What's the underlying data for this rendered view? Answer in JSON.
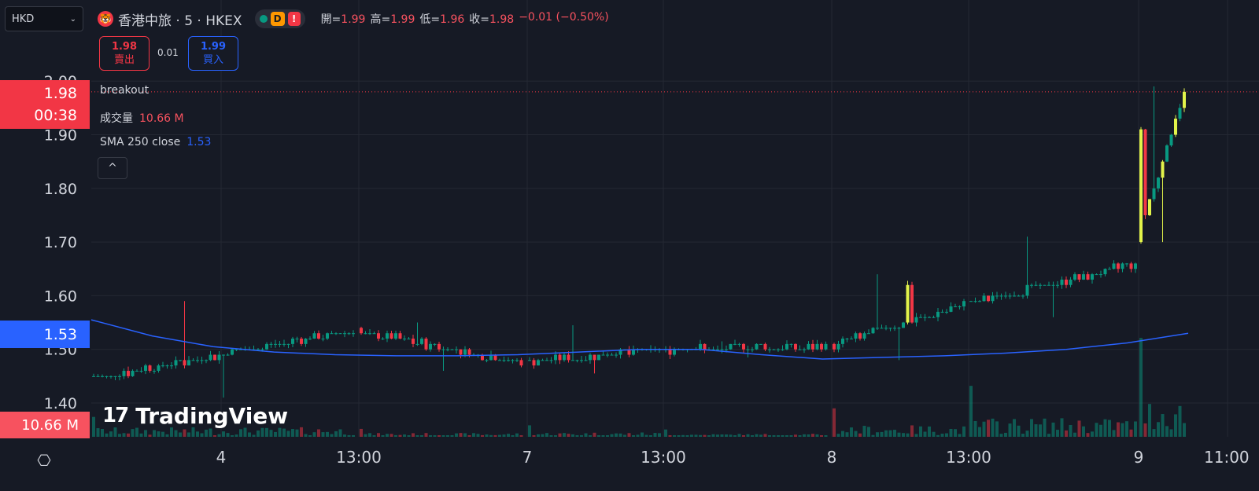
{
  "header": {
    "currency": "HKD",
    "logo_glyph": "🐯",
    "symbol_title": "香港中旅 · 5 · HKEX",
    "status_d": "D",
    "status_excl": "!",
    "ohlc": {
      "open_label": "開=",
      "open": "1.99",
      "high_label": "高=",
      "high": "1.99",
      "low_label": "低=",
      "low": "1.96",
      "close_label": "收=",
      "close": "1.98",
      "change": "−0.01 (−0.50%)"
    }
  },
  "trade": {
    "sell_price": "1.98",
    "sell_label": "賣出",
    "spread": "0.01",
    "buy_price": "1.99",
    "buy_label": "買入"
  },
  "indicators": {
    "breakout": "breakout",
    "volume_label": "成交量",
    "volume_value": "10.66 M",
    "sma_label": "SMA 250 close",
    "sma_value": "1.53"
  },
  "collapse_glyph": "^",
  "price_tags": {
    "last_price": "1.98",
    "countdown": "00:38",
    "sma": "1.53",
    "volume": "10.66 M"
  },
  "branding": {
    "mark": "17",
    "name": "TradingView"
  },
  "settings_glyph": "⎔",
  "colors": {
    "background": "#161a25",
    "up": "#089981",
    "down": "#f23645",
    "highlight": "#e2f34a",
    "sma": "#2962ff",
    "grid": "#242833"
  },
  "chart_data": {
    "type": "candlestick",
    "y_ticks": [
      1.4,
      1.5,
      1.6,
      1.7,
      1.8,
      1.9,
      2.0
    ],
    "ylim": [
      1.39,
      2.01
    ],
    "x_ticks": [
      "4",
      "13:00",
      "7",
      "13:00",
      "8",
      "13:00",
      "9",
      "11:00"
    ],
    "last_price": 1.98,
    "sma_250": [
      1.555,
      1.525,
      1.505,
      1.495,
      1.49,
      1.488,
      1.488,
      1.49,
      1.495,
      1.5,
      1.5,
      1.49,
      1.482,
      1.485,
      1.488,
      1.493,
      1.5,
      1.512,
      1.53
    ],
    "sessions": [
      {
        "day": "4",
        "open": 1.445,
        "close": 1.535,
        "low": 1.41,
        "high": 1.59,
        "vol_level": 0.25
      },
      {
        "day": "4 pm",
        "open": 1.535,
        "close": 1.475,
        "low": 1.46,
        "high": 1.55,
        "vol_level": 0.1
      },
      {
        "day": "7",
        "open": 1.475,
        "close": 1.5,
        "low": 1.455,
        "high": 1.545,
        "vol_level": 0.12
      },
      {
        "day": "7 pm",
        "open": 1.5,
        "close": 1.505,
        "low": 1.485,
        "high": 1.515,
        "vol_level": 0.08
      },
      {
        "day": "8",
        "open": 1.505,
        "close": 1.585,
        "low": 1.48,
        "high": 1.64,
        "vol_level": 0.3
      },
      {
        "day": "8 pm",
        "open": 1.585,
        "close": 1.66,
        "low": 1.56,
        "high": 1.71,
        "vol_level": 0.5
      },
      {
        "day": "9",
        "open": 1.7,
        "close": 1.98,
        "low": 1.7,
        "high": 1.99,
        "vol_level": 1.0
      }
    ]
  }
}
